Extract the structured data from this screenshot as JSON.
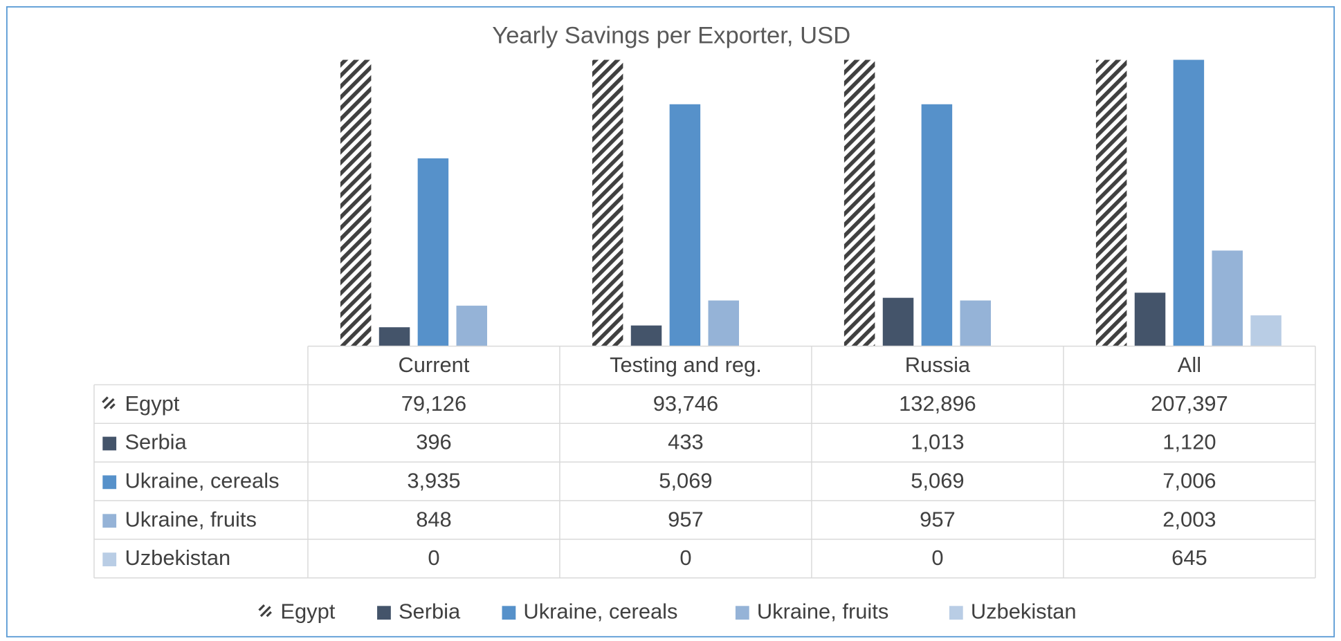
{
  "chart_data": {
    "type": "bar",
    "title": "Yearly Savings per Exporter, USD",
    "categories": [
      "Current",
      "Testing and reg.",
      "Russia",
      "All"
    ],
    "ylim": [
      0,
      6000
    ],
    "series": [
      {
        "name": "Egypt",
        "color": "#404040",
        "pattern": "hatch",
        "values": [
          79126,
          93746,
          132896,
          207397
        ],
        "value_labels": [
          "79,126",
          "93,746",
          "132,896",
          "207,397"
        ]
      },
      {
        "name": "Serbia",
        "color": "#44546a",
        "values": [
          396,
          433,
          1013,
          1120
        ],
        "value_labels": [
          "396",
          "433",
          "1,013",
          "1,120"
        ]
      },
      {
        "name": "Ukraine, cereals",
        "color": "#5691ca",
        "values": [
          3935,
          5069,
          5069,
          7006
        ],
        "value_labels": [
          "3,935",
          "5,069",
          "5,069",
          "7,006"
        ]
      },
      {
        "name": "Ukraine, fruits",
        "color": "#95b3d7",
        "values": [
          848,
          957,
          957,
          2003
        ],
        "value_labels": [
          "848",
          "957",
          "957",
          "2,003"
        ]
      },
      {
        "name": "Uzbekistan",
        "color": "#b9cde5",
        "values": [
          0,
          0,
          0,
          645
        ],
        "value_labels": [
          "0",
          "0",
          "0",
          "645"
        ]
      }
    ]
  }
}
